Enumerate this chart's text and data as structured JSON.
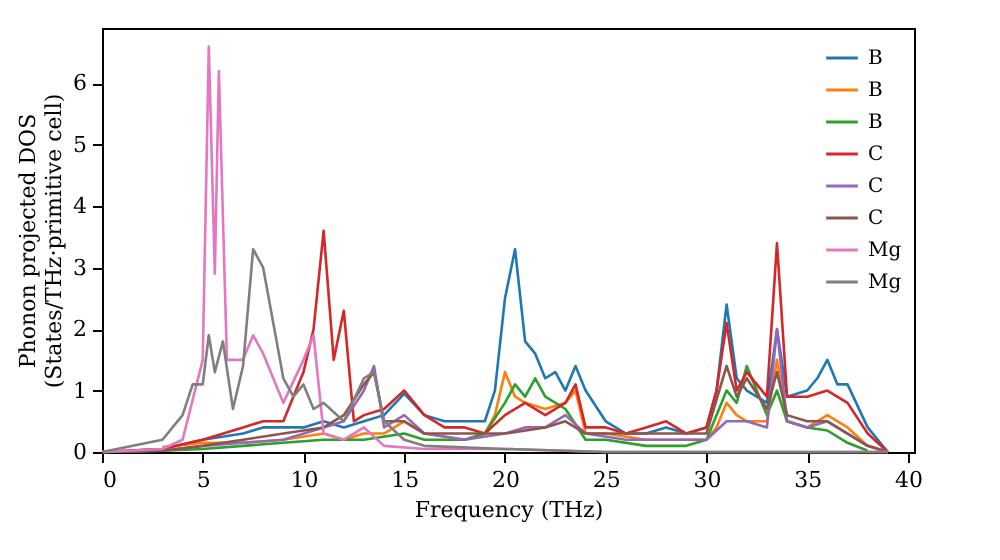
{
  "chart_data": {
    "type": "line",
    "xlabel": "Frequency (THz)",
    "ylabel": "Phonon projected DOS\n(States/THz·primitive cell)",
    "xlim": [
      0,
      40.3
    ],
    "ylim": [
      0,
      6.9
    ],
    "xticks": [
      0,
      5,
      10,
      15,
      20,
      25,
      30,
      35,
      40
    ],
    "yticks": [
      0,
      1,
      2,
      3,
      4,
      5,
      6
    ],
    "grid": false,
    "legend": "top right",
    "marker": "none",
    "line_style": "solid",
    "series": [
      {
        "name": "B",
        "color": "#1f77b4",
        "x": [
          0,
          3,
          5,
          7,
          8,
          10,
          11,
          12,
          13,
          14,
          15,
          16,
          17,
          18,
          19,
          19.5,
          20,
          20.5,
          21,
          21.5,
          22,
          22.5,
          23,
          23.5,
          24,
          25,
          26,
          27,
          28,
          29,
          30,
          30.5,
          31,
          31.5,
          32,
          33,
          33.5,
          34,
          35,
          35.5,
          36,
          36.5,
          37,
          38,
          39
        ],
        "values": [
          0,
          0.05,
          0.2,
          0.3,
          0.4,
          0.4,
          0.5,
          0.4,
          0.5,
          0.6,
          0.95,
          0.6,
          0.5,
          0.5,
          0.5,
          1.0,
          2.5,
          3.3,
          1.8,
          1.6,
          1.2,
          1.3,
          1.0,
          1.4,
          1.0,
          0.5,
          0.3,
          0.3,
          0.4,
          0.3,
          0.4,
          1.0,
          2.4,
          1.2,
          1.0,
          0.8,
          2.0,
          0.9,
          1.0,
          1.2,
          1.5,
          1.1,
          1.1,
          0.4,
          0
        ]
      },
      {
        "name": "B",
        "color": "#ff7f0e",
        "x": [
          3,
          5,
          7,
          9,
          11,
          12,
          13,
          14,
          15,
          16,
          18,
          19,
          19.5,
          20,
          20.5,
          21,
          22,
          23,
          23.5,
          24,
          25,
          27,
          29,
          30,
          30.5,
          31,
          31.5,
          32,
          33,
          33.5,
          34,
          35,
          36,
          37,
          38,
          39
        ],
        "values": [
          0.08,
          0.15,
          0.15,
          0.2,
          0.3,
          0.2,
          0.3,
          0.3,
          0.5,
          0.3,
          0.2,
          0.3,
          0.6,
          1.3,
          0.9,
          0.8,
          0.7,
          0.8,
          1.0,
          0.3,
          0.3,
          0.2,
          0.2,
          0.2,
          0.4,
          0.8,
          0.6,
          0.5,
          0.5,
          1.5,
          0.5,
          0.4,
          0.6,
          0.4,
          0.1,
          0
        ]
      },
      {
        "name": "B",
        "color": "#2ca02c",
        "x": [
          0,
          3,
          5,
          7,
          9,
          11,
          13,
          15,
          16,
          18,
          19,
          20,
          20.5,
          21,
          21.5,
          22,
          23,
          24,
          25,
          27,
          29,
          30,
          31,
          31.5,
          32,
          33,
          33.5,
          34,
          35,
          36,
          37,
          38
        ],
        "values": [
          0,
          0.02,
          0.05,
          0.1,
          0.15,
          0.2,
          0.2,
          0.3,
          0.2,
          0.2,
          0.3,
          0.8,
          1.1,
          0.9,
          1.2,
          0.9,
          0.7,
          0.2,
          0.2,
          0.1,
          0.1,
          0.2,
          1.0,
          0.8,
          1.4,
          0.6,
          1.0,
          0.5,
          0.4,
          0.35,
          0.15,
          0.02
        ]
      },
      {
        "name": "C",
        "color": "#d62728",
        "x": [
          0,
          3,
          5,
          7,
          8,
          9,
          10,
          10.5,
          11,
          11.5,
          12,
          12.5,
          13,
          14,
          15,
          16,
          17,
          18,
          19,
          20,
          21,
          22,
          23,
          23.5,
          24,
          25,
          26,
          27,
          28,
          29,
          30,
          30.5,
          31,
          31.5,
          32,
          33,
          33.5,
          34,
          35,
          36,
          37,
          38,
          39
        ],
        "values": [
          0,
          0.05,
          0.2,
          0.4,
          0.5,
          0.5,
          1.3,
          2.0,
          3.6,
          1.5,
          2.3,
          0.5,
          0.6,
          0.7,
          1.0,
          0.6,
          0.4,
          0.4,
          0.3,
          0.6,
          0.8,
          0.6,
          0.8,
          1.1,
          0.4,
          0.4,
          0.3,
          0.4,
          0.5,
          0.3,
          0.4,
          1.0,
          2.1,
          1.0,
          1.3,
          0.9,
          3.4,
          0.9,
          0.9,
          1.0,
          0.8,
          0.3,
          0
        ]
      },
      {
        "name": "C",
        "color": "#9467bd",
        "x": [
          0,
          3,
          5,
          7,
          9,
          11,
          12,
          13,
          13.5,
          14,
          15,
          16,
          18,
          20,
          21,
          22,
          23,
          24,
          26,
          28,
          30,
          31,
          32,
          33,
          33.5,
          34,
          35,
          36,
          37,
          38,
          39
        ],
        "values": [
          0,
          0.02,
          0.1,
          0.15,
          0.2,
          0.4,
          0.5,
          1.0,
          1.4,
          0.4,
          0.6,
          0.3,
          0.2,
          0.3,
          0.4,
          0.4,
          0.6,
          0.3,
          0.2,
          0.2,
          0.2,
          0.5,
          0.5,
          0.4,
          2.0,
          0.5,
          0.4,
          0.5,
          0.3,
          0.1,
          0
        ]
      },
      {
        "name": "C",
        "color": "#8c564b",
        "x": [
          0,
          3,
          5,
          7,
          9,
          11,
          12,
          13,
          13.5,
          14,
          15,
          16,
          18,
          20,
          22,
          23,
          24,
          26,
          28,
          30,
          31,
          31.5,
          32,
          33,
          33.5,
          34,
          35,
          36,
          37,
          38,
          39
        ],
        "values": [
          0,
          0.02,
          0.1,
          0.2,
          0.3,
          0.4,
          0.6,
          1.1,
          1.3,
          0.5,
          0.5,
          0.3,
          0.3,
          0.3,
          0.4,
          0.5,
          0.3,
          0.3,
          0.3,
          0.3,
          1.4,
          0.9,
          1.2,
          0.7,
          1.3,
          0.6,
          0.5,
          0.5,
          0.3,
          0.1,
          0
        ]
      },
      {
        "name": "Mg",
        "color": "#e377c2",
        "x": [
          0,
          3,
          4,
          5,
          5.3,
          5.6,
          5.8,
          6.2,
          7,
          7.5,
          8,
          9,
          10,
          10.5,
          11,
          12,
          13,
          14,
          16,
          20,
          25,
          30,
          35,
          39
        ],
        "values": [
          0,
          0.05,
          0.2,
          1.5,
          6.6,
          2.9,
          6.2,
          1.5,
          1.5,
          1.9,
          1.6,
          0.8,
          1.5,
          1.9,
          0.3,
          0.2,
          0.4,
          0.1,
          0.05,
          0.05,
          0,
          0,
          0,
          0
        ]
      },
      {
        "name": "Mg",
        "color": "#7f7f7f",
        "x": [
          0,
          3,
          4,
          4.5,
          5,
          5.3,
          5.6,
          6,
          6.5,
          7,
          7.5,
          8,
          8.5,
          9,
          9.5,
          10,
          10.5,
          11,
          12,
          13,
          13.5,
          14,
          15,
          16,
          20,
          25,
          30,
          35,
          39
        ],
        "values": [
          0,
          0.2,
          0.6,
          1.1,
          1.1,
          1.9,
          1.3,
          1.8,
          0.7,
          1.4,
          3.3,
          3.0,
          2.1,
          1.2,
          0.9,
          1.1,
          0.7,
          0.8,
          0.5,
          1.2,
          1.3,
          0.5,
          0.2,
          0.1,
          0.05,
          0,
          0,
          0,
          0
        ]
      }
    ]
  }
}
